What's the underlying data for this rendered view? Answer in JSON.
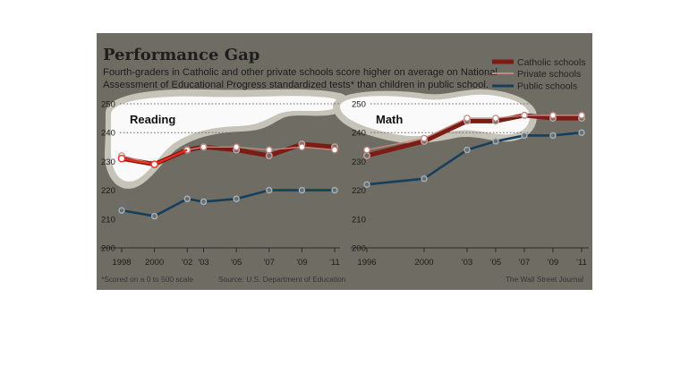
{
  "title": "Performance Gap",
  "subtitle_lines": [
    "Fourth-graders in Catholic and other private schools score higher on average on National",
    "Assessment of Educational Progress standardized tests* than children in public school."
  ],
  "footnote": "*Scored on a 0 to 500 scale",
  "source": "Source: U.S. Department of Education",
  "credit": "The Wall Street Journal",
  "colors": {
    "background": "#6f6d63",
    "catholic": "#7c1c14",
    "private": "#c48884",
    "public": "#163f5d",
    "highlight": "#ef2d1e",
    "page": "#ffffff"
  },
  "legend": [
    "Catholic schools",
    "Private schools",
    "Public schools"
  ],
  "chart_data": [
    {
      "type": "line",
      "title": "Reading",
      "ylim": [
        200,
        250
      ],
      "y_ticks": [
        200,
        210,
        220,
        230,
        240,
        250
      ],
      "x_tick_labels": [
        "1998",
        "2000",
        "'02",
        "'03",
        "'05",
        "'07",
        "'09",
        "'11"
      ],
      "x": [
        1998,
        2000,
        2002,
        2003,
        2005,
        2007,
        2009,
        2011
      ],
      "series": [
        {
          "name": "Catholic schools",
          "values": [
            231,
            229,
            234,
            235,
            234,
            232,
            236,
            235
          ]
        },
        {
          "name": "Private schools",
          "values": [
            232,
            229,
            234,
            235,
            235,
            234,
            235,
            234
          ]
        },
        {
          "name": "Public schools",
          "values": [
            213,
            211,
            217,
            216,
            217,
            220,
            220,
            220
          ]
        }
      ]
    },
    {
      "type": "line",
      "title": "Math",
      "ylim": [
        200,
        250
      ],
      "y_ticks": [
        200,
        210,
        220,
        230,
        240,
        250
      ],
      "x_tick_labels": [
        "1996",
        "2000",
        "'03",
        "'05",
        "'07",
        "'09",
        "'11"
      ],
      "x": [
        1996,
        2000,
        2003,
        2005,
        2007,
        2009,
        2011
      ],
      "series": [
        {
          "name": "Catholic schools",
          "values": [
            232,
            237,
            244,
            244,
            246,
            245,
            245
          ]
        },
        {
          "name": "Private schools",
          "values": [
            234,
            238,
            245,
            245,
            246,
            246,
            246
          ]
        },
        {
          "name": "Public schools",
          "values": [
            222,
            224,
            234,
            237,
            239,
            239,
            240
          ]
        }
      ]
    }
  ]
}
